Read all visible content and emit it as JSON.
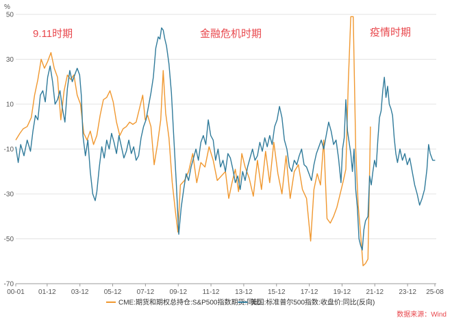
{
  "chart_data": {
    "type": "line",
    "ylabel": "%",
    "ylim": [
      -70,
      50
    ],
    "yticks": [
      50,
      30,
      10,
      -10,
      -30,
      -50,
      -70
    ],
    "xlim": [
      2000.0,
      2025.6667
    ],
    "xticks": [
      "00-01",
      "01-12",
      "03-12",
      "05-12",
      "07-12",
      "09-12",
      "11-12",
      "13-12",
      "15-12",
      "17-12",
      "19-12",
      "21-12",
      "23-12",
      "25-08"
    ],
    "legend_position": "bottom",
    "source_note": "数据来源：Wind",
    "annotations": [
      {
        "label": "9.11时期",
        "x_range": [
          "2000-11",
          "2002-08"
        ],
        "y_range": [
          -16,
          37
        ]
      },
      {
        "label": "金融危机时期",
        "x_range": [
          "2007-08",
          "2010-01"
        ],
        "y_range": [
          -50,
          48
        ]
      },
      {
        "label": "疫情时期",
        "x_range": [
          "2019-04",
          "2021-02"
        ],
        "y_range": [
          -62,
          50
        ]
      }
    ],
    "series": [
      {
        "name": "CME:期货和期权总持仓:S&P500指数期货:同比",
        "color": "#f0972e",
        "points": [
          [
            2000.0,
            -6
          ],
          [
            2000.25,
            -3
          ],
          [
            2000.45,
            -1
          ],
          [
            2000.7,
            0
          ],
          [
            2000.95,
            4
          ],
          [
            2001.15,
            14
          ],
          [
            2001.35,
            21
          ],
          [
            2001.55,
            30
          ],
          [
            2001.75,
            26
          ],
          [
            2001.95,
            29
          ],
          [
            2002.15,
            33
          ],
          [
            2002.35,
            26
          ],
          [
            2002.55,
            22
          ],
          [
            2002.75,
            3
          ],
          [
            2002.95,
            16
          ],
          [
            2003.15,
            23
          ],
          [
            2003.35,
            21
          ],
          [
            2003.55,
            23
          ],
          [
            2003.75,
            14
          ],
          [
            2003.95,
            10
          ],
          [
            2004.15,
            -3
          ],
          [
            2004.35,
            -6
          ],
          [
            2004.55,
            -2
          ],
          [
            2004.75,
            -8
          ],
          [
            2004.95,
            -4
          ],
          [
            2005.15,
            5
          ],
          [
            2005.35,
            12
          ],
          [
            2005.55,
            13
          ],
          [
            2005.75,
            16
          ],
          [
            2005.95,
            11
          ],
          [
            2006.15,
            2
          ],
          [
            2006.35,
            -4
          ],
          [
            2006.55,
            -1
          ],
          [
            2006.75,
            0
          ],
          [
            2006.95,
            2
          ],
          [
            2007.15,
            1
          ],
          [
            2007.35,
            2
          ],
          [
            2007.55,
            8
          ],
          [
            2007.75,
            14
          ],
          [
            2007.9,
            3
          ],
          [
            2008.05,
            5
          ],
          [
            2008.25,
            0
          ],
          [
            2008.45,
            -17
          ],
          [
            2008.65,
            -8
          ],
          [
            2008.85,
            3
          ],
          [
            2009.0,
            25
          ],
          [
            2009.15,
            6
          ],
          [
            2009.35,
            -5
          ],
          [
            2009.55,
            -25
          ],
          [
            2009.75,
            -38
          ],
          [
            2009.9,
            -47
          ],
          [
            2010.05,
            -26
          ],
          [
            2010.3,
            -24
          ],
          [
            2010.55,
            -20
          ],
          [
            2010.8,
            -12
          ],
          [
            2011.05,
            -25
          ],
          [
            2011.3,
            -16
          ],
          [
            2011.55,
            -18
          ],
          [
            2011.8,
            -9
          ],
          [
            2012.05,
            -15
          ],
          [
            2012.3,
            -24
          ],
          [
            2012.55,
            -22
          ],
          [
            2012.8,
            -20
          ],
          [
            2013.0,
            -32
          ],
          [
            2013.2,
            -25
          ],
          [
            2013.4,
            -19
          ],
          [
            2013.6,
            -29
          ],
          [
            2013.8,
            -12
          ],
          [
            2014.0,
            -18
          ],
          [
            2014.25,
            -23
          ],
          [
            2014.5,
            -31
          ],
          [
            2014.75,
            -15
          ],
          [
            2015.0,
            -28
          ],
          [
            2015.25,
            -11
          ],
          [
            2015.5,
            -25
          ],
          [
            2015.75,
            -7
          ],
          [
            2016.0,
            -21
          ],
          [
            2016.25,
            -30
          ],
          [
            2016.5,
            -13
          ],
          [
            2016.75,
            -32
          ],
          [
            2017.0,
            -20
          ],
          [
            2017.25,
            -17
          ],
          [
            2017.5,
            -28
          ],
          [
            2017.75,
            -32
          ],
          [
            2018.0,
            -51
          ],
          [
            2018.2,
            -28
          ],
          [
            2018.4,
            -21
          ],
          [
            2018.6,
            -26
          ],
          [
            2018.8,
            -6
          ],
          [
            2019.0,
            -41
          ],
          [
            2019.2,
            -43
          ],
          [
            2019.4,
            -40
          ],
          [
            2019.6,
            -36
          ],
          [
            2019.8,
            -30
          ],
          [
            2020.0,
            -24
          ],
          [
            2020.15,
            -19
          ],
          [
            2020.3,
            20
          ],
          [
            2020.45,
            49
          ],
          [
            2020.6,
            49
          ],
          [
            2020.75,
            -10
          ],
          [
            2020.9,
            -35
          ],
          [
            2021.05,
            -48
          ],
          [
            2021.2,
            -62
          ],
          [
            2021.35,
            -61
          ],
          [
            2021.5,
            -59
          ],
          [
            2021.65,
            0
          ]
        ]
      },
      {
        "name": "美国:标准普尔500指数:收盘价:同比(反向)",
        "color": "#2f7a9a",
        "points": [
          [
            2000.0,
            -9
          ],
          [
            2000.15,
            -16
          ],
          [
            2000.3,
            -8
          ],
          [
            2000.5,
            -13
          ],
          [
            2000.7,
            -6
          ],
          [
            2000.9,
            -11
          ],
          [
            2001.05,
            -2
          ],
          [
            2001.2,
            5
          ],
          [
            2001.35,
            3
          ],
          [
            2001.5,
            14
          ],
          [
            2001.65,
            16
          ],
          [
            2001.8,
            11
          ],
          [
            2001.95,
            22
          ],
          [
            2002.1,
            27
          ],
          [
            2002.25,
            20
          ],
          [
            2002.4,
            10
          ],
          [
            2002.55,
            12
          ],
          [
            2002.7,
            16
          ],
          [
            2002.85,
            8
          ],
          [
            2003.0,
            2
          ],
          [
            2003.15,
            17
          ],
          [
            2003.3,
            25
          ],
          [
            2003.45,
            20
          ],
          [
            2003.6,
            23
          ],
          [
            2003.75,
            26
          ],
          [
            2003.9,
            23
          ],
          [
            2004.0,
            14
          ],
          [
            2004.1,
            -4
          ],
          [
            2004.25,
            -13
          ],
          [
            2004.4,
            -6
          ],
          [
            2004.55,
            -20
          ],
          [
            2004.7,
            -30
          ],
          [
            2004.85,
            -33
          ],
          [
            2004.95,
            -29
          ],
          [
            2005.1,
            -18
          ],
          [
            2005.25,
            -9
          ],
          [
            2005.4,
            -14
          ],
          [
            2005.55,
            -6
          ],
          [
            2005.7,
            -10
          ],
          [
            2005.85,
            -3
          ],
          [
            2006.0,
            -7
          ],
          [
            2006.15,
            -12
          ],
          [
            2006.3,
            -4
          ],
          [
            2006.45,
            -9
          ],
          [
            2006.6,
            -14
          ],
          [
            2006.75,
            -11
          ],
          [
            2006.9,
            -6
          ],
          [
            2007.05,
            -12
          ],
          [
            2007.2,
            -9
          ],
          [
            2007.35,
            -15
          ],
          [
            2007.5,
            -13
          ],
          [
            2007.65,
            -5
          ],
          [
            2007.8,
            0
          ],
          [
            2007.95,
            3
          ],
          [
            2008.1,
            9
          ],
          [
            2008.25,
            15
          ],
          [
            2008.4,
            22
          ],
          [
            2008.55,
            35
          ],
          [
            2008.7,
            40
          ],
          [
            2008.8,
            39
          ],
          [
            2008.9,
            44
          ],
          [
            2009.0,
            43
          ],
          [
            2009.1,
            39
          ],
          [
            2009.2,
            36
          ],
          [
            2009.35,
            28
          ],
          [
            2009.5,
            15
          ],
          [
            2009.65,
            -5
          ],
          [
            2009.8,
            -25
          ],
          [
            2009.95,
            -48
          ],
          [
            2010.1,
            -36
          ],
          [
            2010.25,
            -28
          ],
          [
            2010.4,
            -21
          ],
          [
            2010.55,
            -24
          ],
          [
            2010.7,
            -18
          ],
          [
            2010.85,
            -14
          ],
          [
            2011.0,
            -10
          ],
          [
            2011.15,
            -15
          ],
          [
            2011.3,
            -7
          ],
          [
            2011.45,
            -4
          ],
          [
            2011.6,
            -8
          ],
          [
            2011.75,
            3
          ],
          [
            2011.9,
            -4
          ],
          [
            2012.05,
            -6
          ],
          [
            2012.2,
            -15
          ],
          [
            2012.35,
            -10
          ],
          [
            2012.5,
            -18
          ],
          [
            2012.65,
            -15
          ],
          [
            2012.8,
            -20
          ],
          [
            2012.95,
            -12
          ],
          [
            2013.1,
            -14
          ],
          [
            2013.25,
            -19
          ],
          [
            2013.4,
            -25
          ],
          [
            2013.55,
            -22
          ],
          [
            2013.7,
            -28
          ],
          [
            2013.85,
            -20
          ],
          [
            2014.0,
            -24
          ],
          [
            2014.15,
            -18
          ],
          [
            2014.3,
            -14
          ],
          [
            2014.45,
            -10
          ],
          [
            2014.6,
            -15
          ],
          [
            2014.75,
            -13
          ],
          [
            2014.9,
            -7
          ],
          [
            2015.05,
            -11
          ],
          [
            2015.2,
            -5
          ],
          [
            2015.35,
            -9
          ],
          [
            2015.5,
            -4
          ],
          [
            2015.65,
            -8
          ],
          [
            2015.8,
            0
          ],
          [
            2015.95,
            3
          ],
          [
            2016.1,
            9
          ],
          [
            2016.25,
            4
          ],
          [
            2016.4,
            -6
          ],
          [
            2016.55,
            -10
          ],
          [
            2016.7,
            -18
          ],
          [
            2016.85,
            -20
          ],
          [
            2017.0,
            -15
          ],
          [
            2017.15,
            -17
          ],
          [
            2017.3,
            -13
          ],
          [
            2017.45,
            -10
          ],
          [
            2017.6,
            -17
          ],
          [
            2017.75,
            -18
          ],
          [
            2017.9,
            -21
          ],
          [
            2018.05,
            -24
          ],
          [
            2018.2,
            -17
          ],
          [
            2018.35,
            -12
          ],
          [
            2018.5,
            -9
          ],
          [
            2018.65,
            -6
          ],
          [
            2018.8,
            -10
          ],
          [
            2018.95,
            -4
          ],
          [
            2019.1,
            2
          ],
          [
            2019.25,
            -2
          ],
          [
            2019.4,
            -8
          ],
          [
            2019.55,
            -6
          ],
          [
            2019.7,
            -14
          ],
          [
            2019.85,
            -25
          ],
          [
            2019.95,
            -10
          ],
          [
            2020.05,
            -5
          ],
          [
            2020.15,
            12
          ],
          [
            2020.25,
            -2
          ],
          [
            2020.35,
            -7
          ],
          [
            2020.45,
            -12
          ],
          [
            2020.55,
            -20
          ],
          [
            2020.65,
            -10
          ],
          [
            2020.75,
            -28
          ],
          [
            2020.85,
            -36
          ],
          [
            2020.95,
            -50
          ],
          [
            2021.05,
            -53
          ],
          [
            2021.15,
            -55
          ],
          [
            2021.25,
            -46
          ],
          [
            2021.35,
            -42
          ],
          [
            2021.5,
            -40
          ],
          [
            2021.6,
            -22
          ],
          [
            2021.7,
            -26
          ],
          [
            2021.8,
            -20
          ],
          [
            2021.9,
            -15
          ],
          [
            2022.0,
            -18
          ],
          [
            2022.1,
            -6
          ],
          [
            2022.2,
            4
          ],
          [
            2022.3,
            7
          ],
          [
            2022.4,
            16
          ],
          [
            2022.5,
            22
          ],
          [
            2022.6,
            13
          ],
          [
            2022.7,
            18
          ],
          [
            2022.8,
            10
          ],
          [
            2022.9,
            8
          ],
          [
            2023.0,
            5
          ],
          [
            2023.1,
            -5
          ],
          [
            2023.2,
            -12
          ],
          [
            2023.3,
            -16
          ],
          [
            2023.45,
            -10
          ],
          [
            2023.6,
            -15
          ],
          [
            2023.75,
            -12
          ],
          [
            2023.9,
            -17
          ],
          [
            2024.05,
            -14
          ],
          [
            2024.2,
            -20
          ],
          [
            2024.35,
            -26
          ],
          [
            2024.5,
            -30
          ],
          [
            2024.65,
            -35
          ],
          [
            2024.8,
            -32
          ],
          [
            2024.95,
            -28
          ],
          [
            2025.1,
            -19
          ],
          [
            2025.2,
            -8
          ],
          [
            2025.3,
            -12
          ],
          [
            2025.45,
            -15
          ],
          [
            2025.6,
            -15
          ]
        ]
      }
    ]
  }
}
